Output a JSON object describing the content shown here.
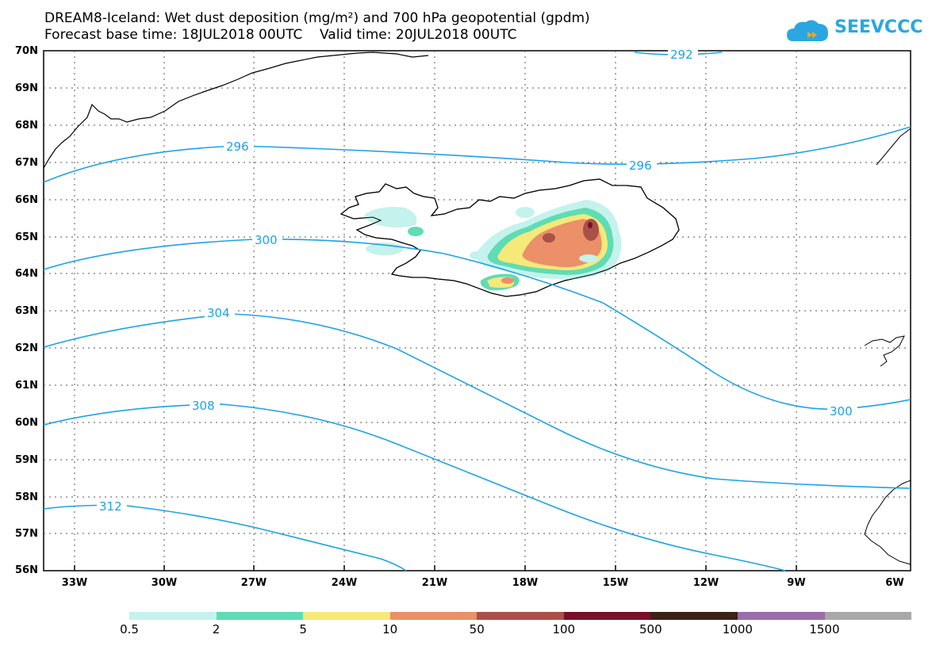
{
  "title_line1": "DREAM8-Iceland: Wet dust deposition (mg/m²) and 700 hPa geopotential (gpdm)",
  "title_line2": "Forecast base time: 18JUL2018 00UTC    Valid time: 20JUL2018 00UTC",
  "logo_text": "SEEVCCC",
  "logo_icon": "cloud-icon",
  "lat_labels": [
    "70N",
    "69N",
    "68N",
    "67N",
    "66N",
    "65N",
    "64N",
    "63N",
    "62N",
    "61N",
    "60N",
    "59N",
    "58N",
    "57N",
    "56N"
  ],
  "lon_labels": [
    "33W",
    "30W",
    "27W",
    "24W",
    "21W",
    "18W",
    "15W",
    "12W",
    "9W",
    "6W"
  ],
  "contour_labels": [
    "292",
    "296",
    "296",
    "300",
    "300",
    "304",
    "308",
    "312"
  ],
  "colorbar": {
    "colors": [
      "#c4f2ec",
      "#5fdcb4",
      "#f5e97a",
      "#eb9068",
      "#a95148",
      "#7a0f2a",
      "#3a2214",
      "#9a6ea8",
      "#a8a8a8"
    ],
    "labels": [
      "0.5",
      "2",
      "5",
      "10",
      "50",
      "100",
      "500",
      "1000",
      "1500"
    ]
  },
  "colors": {
    "contour": "#1ba3e8",
    "coast": "#000000"
  }
}
